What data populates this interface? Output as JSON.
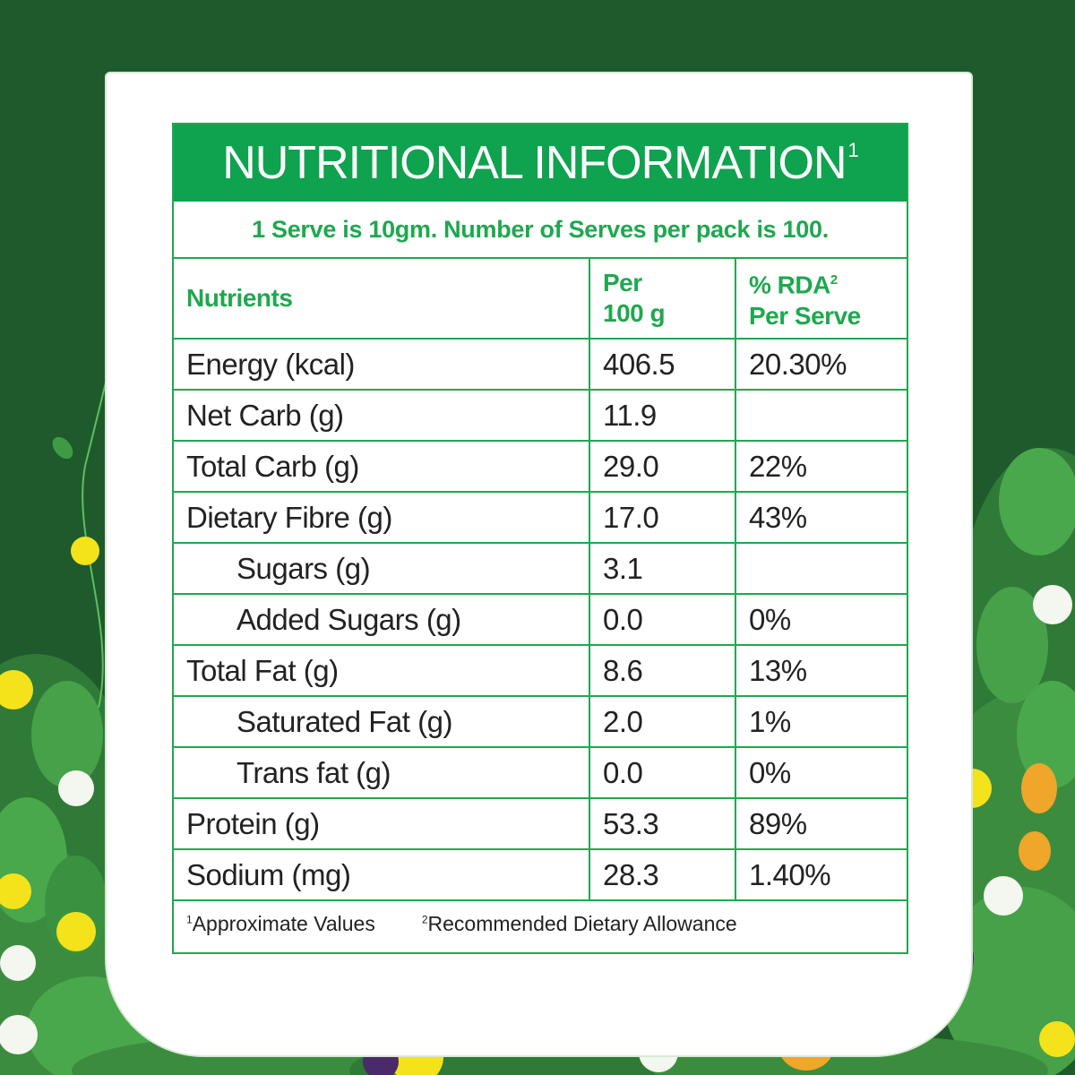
{
  "title": "NUTRITIONAL INFORMATION",
  "title_sup": "1",
  "serve_info": "1 Serve is 10gm. Number of Serves per pack is 100.",
  "columns": {
    "nutrients": "Nutrients",
    "per_line1": "Per",
    "per_line2": "100 g",
    "rda_line1": "% RDA",
    "rda_sup": "2",
    "rda_line2": "Per Serve"
  },
  "rows": [
    {
      "name": "Energy (kcal)",
      "per100": "406.5",
      "rda": "20.30%"
    },
    {
      "name": "Net Carb (g)",
      "per100": "11.9",
      "rda": ""
    },
    {
      "name": "Total Carb (g)",
      "per100": "29.0",
      "rda": "22%"
    },
    {
      "name": "Dietary Fibre (g)",
      "per100": "17.0",
      "rda": "43%"
    },
    {
      "name": "Sugars (g)",
      "per100": "3.1",
      "rda": ""
    },
    {
      "name": "Added Sugars (g)",
      "per100": "0.0",
      "rda": "0%"
    },
    {
      "name": "Total Fat (g)",
      "per100": "8.6",
      "rda": "13%"
    },
    {
      "name": "Saturated Fat (g)",
      "per100": "2.0",
      "rda": "1%"
    },
    {
      "name": "Trans fat (g)",
      "per100": "0.0",
      "rda": "0%"
    },
    {
      "name": "Protein (g)",
      "per100": "53.3",
      "rda": "89%"
    },
    {
      "name": "Sodium (mg)",
      "per100": "28.3",
      "rda": "1.40%"
    }
  ],
  "footnotes": {
    "n1_sup": "1",
    "n1": "Approximate Values",
    "n2_sup": "2",
    "n2": "Recommended Dietary Allowance"
  },
  "colors": {
    "background": "#1f5a2c",
    "accent_green": "#0fa24f",
    "border_green": "#1fa84f",
    "leaf_green": "#3f9a44",
    "flower_yellow": "#f4e21b"
  }
}
